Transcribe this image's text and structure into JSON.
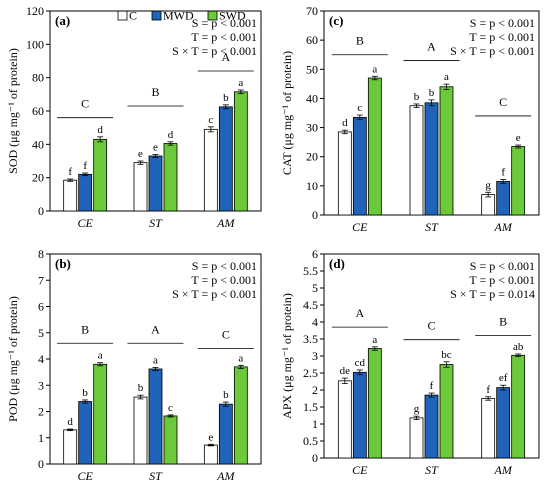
{
  "legend": [
    {
      "key": "C",
      "label": "C",
      "color": "#ffffff"
    },
    {
      "key": "MWD",
      "label": "MWD",
      "color": "#1f64b8"
    },
    {
      "key": "SWD",
      "label": "SWD",
      "color": "#6cc93a"
    }
  ],
  "chart_data": [
    {
      "panel": "(a)",
      "type": "bar",
      "ylabel": "SOD (μg mg⁻¹ of protein)",
      "ylim": [
        0,
        120
      ],
      "yticks": [
        0,
        20,
        40,
        60,
        80,
        100,
        120
      ],
      "categories": [
        "CE",
        "ST",
        "AM"
      ],
      "stats": [
        "S = p < 0.001",
        "T = p < 0.001",
        "S × T = p < 0.001"
      ],
      "group_letters": [
        "C",
        "B",
        "A"
      ],
      "group_line_y": [
        56,
        63,
        84
      ],
      "series": [
        {
          "name": "C",
          "values": [
            18.5,
            29.0,
            49.0
          ],
          "errors": [
            0.7,
            1.0,
            1.5
          ],
          "letters": [
            "f",
            "e",
            "c"
          ]
        },
        {
          "name": "MWD",
          "values": [
            22.0,
            33.0,
            62.5
          ],
          "errors": [
            0.8,
            0.9,
            1.2
          ],
          "letters": [
            "f",
            "e",
            "b"
          ]
        },
        {
          "name": "SWD",
          "values": [
            43.0,
            40.5,
            71.5
          ],
          "errors": [
            1.5,
            1.0,
            1.1
          ],
          "letters": [
            "d",
            "d",
            "a"
          ]
        }
      ]
    },
    {
      "panel": "(c)",
      "type": "bar",
      "ylabel": "CAT (μg mg⁻¹ of protein)",
      "ylim": [
        0,
        70
      ],
      "yticks": [
        0,
        10,
        20,
        30,
        40,
        50,
        60,
        70
      ],
      "categories": [
        "CE",
        "ST",
        "AM"
      ],
      "stats": [
        "S = p < 0.001",
        "T = p < 0.001",
        "S × T = p < 0.001"
      ],
      "group_letters": [
        "B",
        "A",
        "C"
      ],
      "group_line_y": [
        55,
        53,
        34
      ],
      "series": [
        {
          "name": "C",
          "values": [
            28.5,
            37.5,
            7.0
          ],
          "errors": [
            0.6,
            0.6,
            0.8
          ],
          "letters": [
            "d",
            "b",
            "g"
          ]
        },
        {
          "name": "MWD",
          "values": [
            33.5,
            38.5,
            11.5
          ],
          "errors": [
            0.8,
            1.0,
            0.7
          ],
          "letters": [
            "c",
            "b",
            "f"
          ]
        },
        {
          "name": "SWD",
          "values": [
            47.0,
            44.0,
            23.5
          ],
          "errors": [
            0.6,
            0.9,
            0.5
          ],
          "letters": [
            "a",
            "a",
            "e"
          ]
        }
      ]
    },
    {
      "panel": "(b)",
      "type": "bar",
      "ylabel": "POD (μg mg⁻¹ of protein)",
      "ylim": [
        0,
        8
      ],
      "yticks": [
        0,
        1,
        2,
        3,
        4,
        5,
        6,
        7,
        8
      ],
      "categories": [
        "CE",
        "ST",
        "AM"
      ],
      "stats": [
        "S = p < 0.001",
        "T = p < 0.001",
        "S × T = p < 0.001"
      ],
      "group_letters": [
        "B",
        "A",
        "C"
      ],
      "group_line_y": [
        4.6,
        4.6,
        4.4
      ],
      "series": [
        {
          "name": "C",
          "values": [
            1.3,
            2.55,
            0.72
          ],
          "errors": [
            0.03,
            0.07,
            0.03
          ],
          "letters": [
            "d",
            "b",
            "e"
          ]
        },
        {
          "name": "MWD",
          "values": [
            2.38,
            3.62,
            2.28
          ],
          "errors": [
            0.06,
            0.06,
            0.08
          ],
          "letters": [
            "b",
            "a",
            "b"
          ]
        },
        {
          "name": "SWD",
          "values": [
            3.8,
            1.83,
            3.7
          ],
          "errors": [
            0.06,
            0.04,
            0.06
          ],
          "letters": [
            "a",
            "c",
            "a"
          ]
        }
      ]
    },
    {
      "panel": "(d)",
      "type": "bar",
      "ylabel": "APX (μg mg⁻¹ of protein)",
      "ylim": [
        0,
        6
      ],
      "yticks": [
        0,
        0.5,
        1,
        1.5,
        2,
        2.5,
        3,
        3.5,
        4,
        4.5,
        5,
        5.5,
        6
      ],
      "categories": [
        "CE",
        "ST",
        "AM"
      ],
      "stats": [
        "S = p < 0.001",
        "T = p < 0.001",
        "S × T = p = 0.014"
      ],
      "group_letters": [
        "A",
        "C",
        "B"
      ],
      "group_line_y": [
        3.85,
        3.48,
        3.6
      ],
      "series": [
        {
          "name": "C",
          "values": [
            2.27,
            1.18,
            1.75
          ],
          "errors": [
            0.08,
            0.05,
            0.05
          ],
          "letters": [
            "de",
            "g",
            "f"
          ]
        },
        {
          "name": "MWD",
          "values": [
            2.52,
            1.85,
            2.07
          ],
          "errors": [
            0.07,
            0.06,
            0.07
          ],
          "letters": [
            "cd",
            "f",
            "ef"
          ]
        },
        {
          "name": "SWD",
          "values": [
            3.22,
            2.75,
            3.02
          ],
          "errors": [
            0.05,
            0.08,
            0.04
          ],
          "letters": [
            "a",
            "bc",
            "ab"
          ]
        }
      ]
    }
  ]
}
